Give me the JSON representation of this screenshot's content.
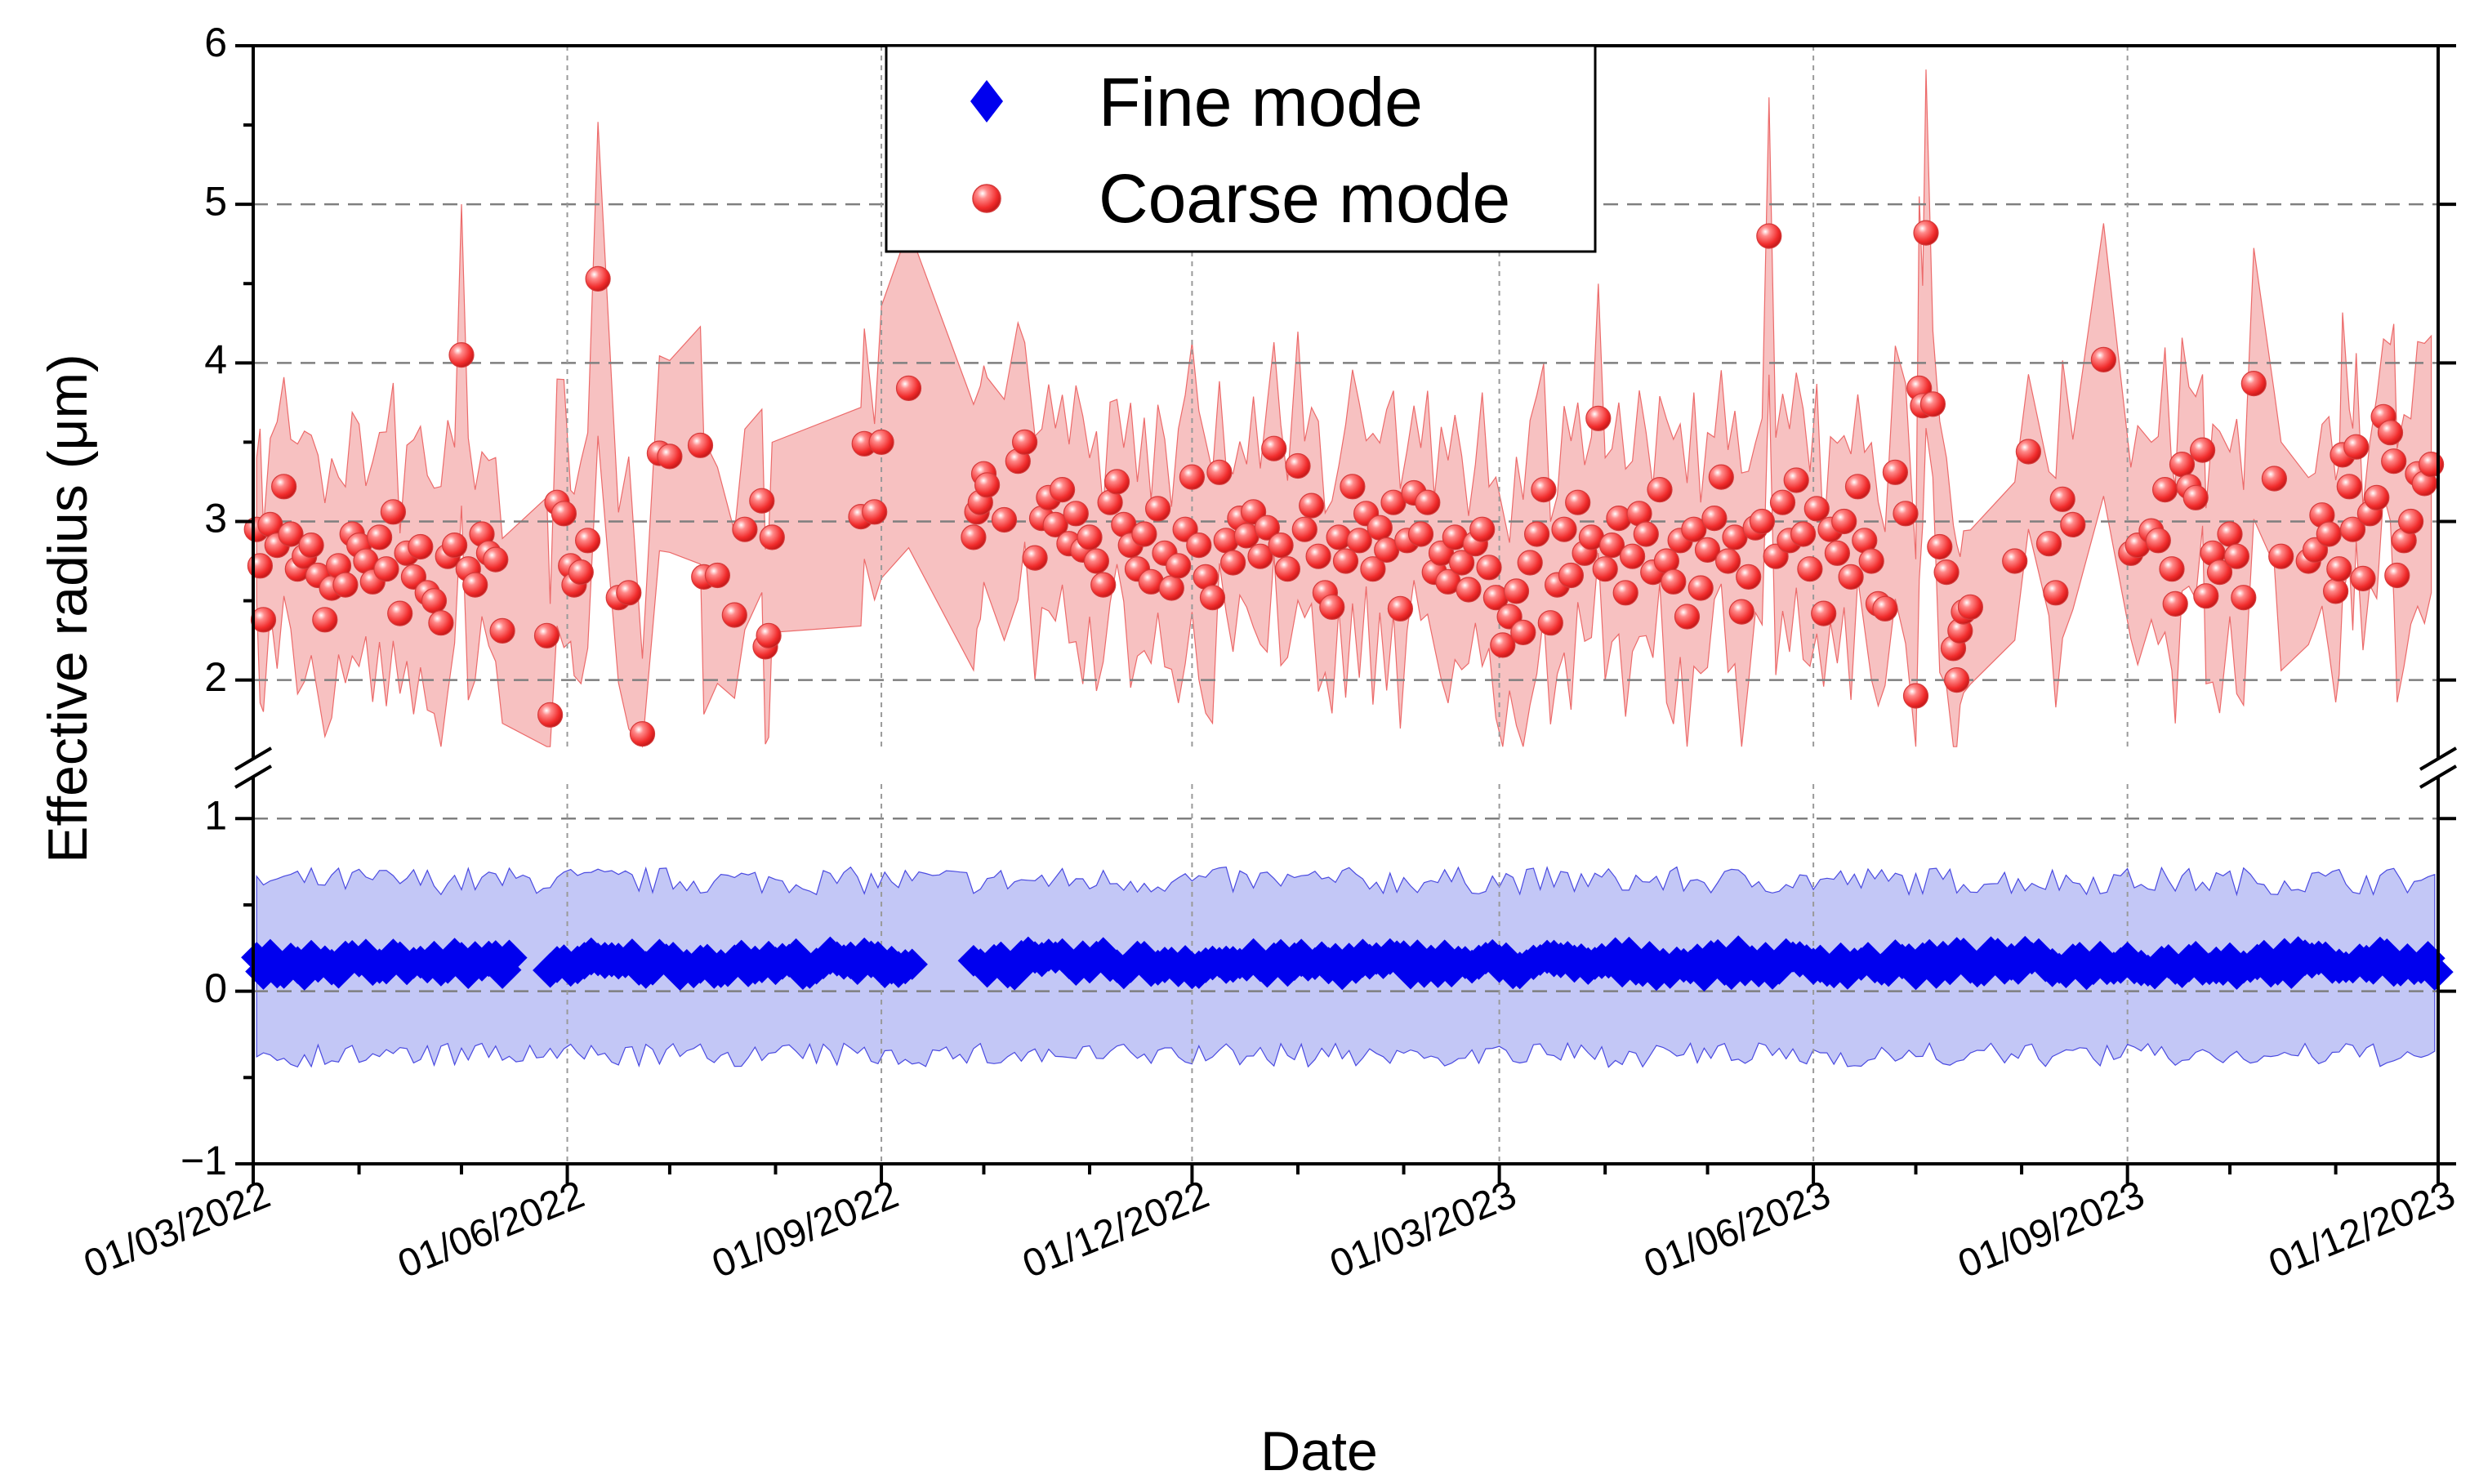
{
  "chart_data": {
    "type": "scatter",
    "title": "",
    "xlabel": "Date",
    "ylabel": "Effective radius (μm)",
    "x_range": [
      "2022-03-01",
      "2023-12-01"
    ],
    "x_tick_dates": [
      "2022-03-01",
      "2022-06-01",
      "2022-09-01",
      "2022-12-01",
      "2023-03-01",
      "2023-06-01",
      "2023-09-01",
      "2023-12-01"
    ],
    "x_tick_labels": [
      "01/03/2022",
      "01/06/2022",
      "01/09/2022",
      "01/12/2022",
      "01/03/2023",
      "01/06/2023",
      "01/09/2023",
      "01/12/2023"
    ],
    "y_axis_break": {
      "lower_segment": [
        -1,
        1.2
      ],
      "upper_segment": [
        1.55,
        6
      ]
    },
    "y_tick_values": [
      -1,
      0,
      1,
      2,
      3,
      4,
      5,
      6
    ],
    "y_tick_labels": [
      "−1",
      "0",
      "1",
      "2",
      "3",
      "4",
      "5",
      "6"
    ],
    "grid": true,
    "legend_position": "top-center",
    "legend": [
      "Fine mode",
      "Coarse mode"
    ],
    "series": [
      {
        "name": "Coarse mode",
        "marker": "sphere",
        "color": "#ff4a4a",
        "band_color": "#f4a6a6",
        "points": [
          [
            "2022-03-02",
            2.95
          ],
          [
            "2022-03-03",
            2.72
          ],
          [
            "2022-03-04",
            2.38
          ],
          [
            "2022-03-06",
            2.98
          ],
          [
            "2022-03-08",
            2.85
          ],
          [
            "2022-03-10",
            3.22
          ],
          [
            "2022-03-12",
            2.92
          ],
          [
            "2022-03-14",
            2.7
          ],
          [
            "2022-03-16",
            2.78
          ],
          [
            "2022-03-18",
            2.85
          ],
          [
            "2022-03-20",
            2.66
          ],
          [
            "2022-03-22",
            2.38
          ],
          [
            "2022-03-24",
            2.58
          ],
          [
            "2022-03-26",
            2.72
          ],
          [
            "2022-03-28",
            2.6
          ],
          [
            "2022-03-30",
            2.92
          ],
          [
            "2022-04-01",
            2.85
          ],
          [
            "2022-04-03",
            2.75
          ],
          [
            "2022-04-05",
            2.62
          ],
          [
            "2022-04-07",
            2.9
          ],
          [
            "2022-04-09",
            2.7
          ],
          [
            "2022-04-11",
            3.06
          ],
          [
            "2022-04-13",
            2.42
          ],
          [
            "2022-04-15",
            2.8
          ],
          [
            "2022-04-17",
            2.65
          ],
          [
            "2022-04-19",
            2.84
          ],
          [
            "2022-04-21",
            2.55
          ],
          [
            "2022-04-23",
            2.5
          ],
          [
            "2022-04-25",
            2.36
          ],
          [
            "2022-04-27",
            2.78
          ],
          [
            "2022-04-29",
            2.85
          ],
          [
            "2022-05-01",
            4.05
          ],
          [
            "2022-05-03",
            2.7
          ],
          [
            "2022-05-05",
            2.6
          ],
          [
            "2022-05-07",
            2.92
          ],
          [
            "2022-05-09",
            2.8
          ],
          [
            "2022-05-11",
            2.76
          ],
          [
            "2022-05-13",
            2.31
          ],
          [
            "2022-05-26",
            2.28
          ],
          [
            "2022-05-27",
            1.78
          ],
          [
            "2022-05-29",
            3.12
          ],
          [
            "2022-05-31",
            3.05
          ],
          [
            "2022-06-02",
            2.72
          ],
          [
            "2022-06-03",
            2.6
          ],
          [
            "2022-06-05",
            2.68
          ],
          [
            "2022-06-07",
            2.88
          ],
          [
            "2022-06-10",
            4.53
          ],
          [
            "2022-06-16",
            2.52
          ],
          [
            "2022-06-19",
            2.55
          ],
          [
            "2022-06-23",
            1.66
          ],
          [
            "2022-06-28",
            3.43
          ],
          [
            "2022-07-01",
            3.41
          ],
          [
            "2022-07-10",
            3.48
          ],
          [
            "2022-07-11",
            2.65
          ],
          [
            "2022-07-15",
            2.66
          ],
          [
            "2022-07-20",
            2.41
          ],
          [
            "2022-07-23",
            2.95
          ],
          [
            "2022-07-28",
            3.13
          ],
          [
            "2022-07-29",
            2.21
          ],
          [
            "2022-07-30",
            2.28
          ],
          [
            "2022-07-31",
            2.9
          ],
          [
            "2022-08-26",
            3.03
          ],
          [
            "2022-08-27",
            3.49
          ],
          [
            "2022-08-30",
            3.06
          ],
          [
            "2022-09-01",
            3.5
          ],
          [
            "2022-09-09",
            3.84
          ],
          [
            "2022-09-28",
            2.9
          ],
          [
            "2022-09-29",
            3.06
          ],
          [
            "2022-09-30",
            3.12
          ],
          [
            "2022-10-01",
            3.3
          ],
          [
            "2022-10-02",
            3.23
          ],
          [
            "2022-10-07",
            3.01
          ],
          [
            "2022-10-11",
            3.38
          ],
          [
            "2022-10-13",
            3.5
          ],
          [
            "2022-10-16",
            2.77
          ],
          [
            "2022-10-18",
            3.02
          ],
          [
            "2022-10-20",
            3.15
          ],
          [
            "2022-10-22",
            2.98
          ],
          [
            "2022-10-24",
            3.2
          ],
          [
            "2022-10-26",
            2.86
          ],
          [
            "2022-10-28",
            3.05
          ],
          [
            "2022-10-30",
            2.82
          ],
          [
            "2022-11-01",
            2.9
          ],
          [
            "2022-11-03",
            2.75
          ],
          [
            "2022-11-05",
            2.6
          ],
          [
            "2022-11-07",
            3.12
          ],
          [
            "2022-11-09",
            3.25
          ],
          [
            "2022-11-11",
            2.98
          ],
          [
            "2022-11-13",
            2.85
          ],
          [
            "2022-11-15",
            2.7
          ],
          [
            "2022-11-17",
            2.92
          ],
          [
            "2022-11-19",
            2.62
          ],
          [
            "2022-11-21",
            3.08
          ],
          [
            "2022-11-23",
            2.8
          ],
          [
            "2022-11-25",
            2.58
          ],
          [
            "2022-11-27",
            2.72
          ],
          [
            "2022-11-29",
            2.95
          ],
          [
            "2022-12-01",
            3.28
          ],
          [
            "2022-12-03",
            2.85
          ],
          [
            "2022-12-05",
            2.65
          ],
          [
            "2022-12-07",
            2.52
          ],
          [
            "2022-12-09",
            3.31
          ],
          [
            "2022-12-11",
            2.88
          ],
          [
            "2022-12-13",
            2.74
          ],
          [
            "2022-12-15",
            3.02
          ],
          [
            "2022-12-17",
            2.91
          ],
          [
            "2022-12-19",
            3.06
          ],
          [
            "2022-12-21",
            2.78
          ],
          [
            "2022-12-23",
            2.96
          ],
          [
            "2022-12-25",
            3.46
          ],
          [
            "2022-12-27",
            2.85
          ],
          [
            "2022-12-29",
            2.7
          ],
          [
            "2023-01-01",
            3.35
          ],
          [
            "2023-01-03",
            2.95
          ],
          [
            "2023-01-05",
            3.1
          ],
          [
            "2023-01-07",
            2.78
          ],
          [
            "2023-01-09",
            2.55
          ],
          [
            "2023-01-11",
            2.46
          ],
          [
            "2023-01-13",
            2.9
          ],
          [
            "2023-01-15",
            2.75
          ],
          [
            "2023-01-17",
            3.22
          ],
          [
            "2023-01-19",
            2.88
          ],
          [
            "2023-01-21",
            3.05
          ],
          [
            "2023-01-23",
            2.7
          ],
          [
            "2023-01-25",
            2.96
          ],
          [
            "2023-01-27",
            2.82
          ],
          [
            "2023-01-29",
            3.12
          ],
          [
            "2023-01-31",
            2.45
          ],
          [
            "2023-02-02",
            2.88
          ],
          [
            "2023-02-04",
            3.18
          ],
          [
            "2023-02-06",
            2.92
          ],
          [
            "2023-02-08",
            3.12
          ],
          [
            "2023-02-10",
            2.68
          ],
          [
            "2023-02-12",
            2.8
          ],
          [
            "2023-02-14",
            2.62
          ],
          [
            "2023-02-16",
            2.9
          ],
          [
            "2023-02-18",
            2.74
          ],
          [
            "2023-02-20",
            2.57
          ],
          [
            "2023-02-22",
            2.86
          ],
          [
            "2023-02-24",
            2.95
          ],
          [
            "2023-02-26",
            2.71
          ],
          [
            "2023-02-28",
            2.52
          ],
          [
            "2023-03-02",
            2.22
          ],
          [
            "2023-03-04",
            2.4
          ],
          [
            "2023-03-06",
            2.56
          ],
          [
            "2023-03-08",
            2.3
          ],
          [
            "2023-03-10",
            2.74
          ],
          [
            "2023-03-12",
            2.92
          ],
          [
            "2023-03-14",
            3.2
          ],
          [
            "2023-03-16",
            2.36
          ],
          [
            "2023-03-18",
            2.6
          ],
          [
            "2023-03-20",
            2.95
          ],
          [
            "2023-03-22",
            2.66
          ],
          [
            "2023-03-24",
            3.12
          ],
          [
            "2023-03-26",
            2.8
          ],
          [
            "2023-03-28",
            2.9
          ],
          [
            "2023-03-30",
            3.65
          ],
          [
            "2023-04-01",
            2.7
          ],
          [
            "2023-04-03",
            2.85
          ],
          [
            "2023-04-05",
            3.02
          ],
          [
            "2023-04-07",
            2.55
          ],
          [
            "2023-04-09",
            2.78
          ],
          [
            "2023-04-11",
            3.05
          ],
          [
            "2023-04-13",
            2.92
          ],
          [
            "2023-04-15",
            2.68
          ],
          [
            "2023-04-17",
            3.2
          ],
          [
            "2023-04-19",
            2.75
          ],
          [
            "2023-04-21",
            2.62
          ],
          [
            "2023-04-23",
            2.88
          ],
          [
            "2023-04-25",
            2.4
          ],
          [
            "2023-04-27",
            2.95
          ],
          [
            "2023-04-29",
            2.58
          ],
          [
            "2023-05-01",
            2.82
          ],
          [
            "2023-05-03",
            3.02
          ],
          [
            "2023-05-05",
            3.28
          ],
          [
            "2023-05-07",
            2.75
          ],
          [
            "2023-05-09",
            2.9
          ],
          [
            "2023-05-11",
            2.43
          ],
          [
            "2023-05-13",
            2.65
          ],
          [
            "2023-05-15",
            2.96
          ],
          [
            "2023-05-17",
            3.0
          ],
          [
            "2023-05-19",
            4.8
          ],
          [
            "2023-05-21",
            2.78
          ],
          [
            "2023-05-23",
            3.12
          ],
          [
            "2023-05-25",
            2.88
          ],
          [
            "2023-05-27",
            3.26
          ],
          [
            "2023-05-29",
            2.92
          ],
          [
            "2023-05-31",
            2.7
          ],
          [
            "2023-06-02",
            3.08
          ],
          [
            "2023-06-04",
            2.42
          ],
          [
            "2023-06-06",
            2.95
          ],
          [
            "2023-06-08",
            2.8
          ],
          [
            "2023-06-10",
            3.0
          ],
          [
            "2023-06-12",
            2.65
          ],
          [
            "2023-06-14",
            3.22
          ],
          [
            "2023-06-16",
            2.88
          ],
          [
            "2023-06-18",
            2.75
          ],
          [
            "2023-06-20",
            2.48
          ],
          [
            "2023-06-22",
            2.45
          ],
          [
            "2023-06-25",
            3.31
          ],
          [
            "2023-06-28",
            3.05
          ],
          [
            "2023-07-01",
            1.9
          ],
          [
            "2023-07-02",
            3.84
          ],
          [
            "2023-07-03",
            3.73
          ],
          [
            "2023-07-04",
            4.82
          ],
          [
            "2023-07-06",
            3.74
          ],
          [
            "2023-07-08",
            2.84
          ],
          [
            "2023-07-10",
            2.68
          ],
          [
            "2023-07-12",
            2.2
          ],
          [
            "2023-07-13",
            2.0
          ],
          [
            "2023-07-14",
            2.31
          ],
          [
            "2023-07-15",
            2.43
          ],
          [
            "2023-07-17",
            2.46
          ],
          [
            "2023-07-30",
            2.75
          ],
          [
            "2023-08-03",
            3.44
          ],
          [
            "2023-08-09",
            2.86
          ],
          [
            "2023-08-11",
            2.55
          ],
          [
            "2023-08-13",
            3.14
          ],
          [
            "2023-08-16",
            2.98
          ],
          [
            "2023-08-25",
            4.02
          ],
          [
            "2023-09-02",
            2.8
          ],
          [
            "2023-09-04",
            2.85
          ],
          [
            "2023-09-08",
            2.94
          ],
          [
            "2023-09-10",
            2.88
          ],
          [
            "2023-09-12",
            3.2
          ],
          [
            "2023-09-14",
            2.7
          ],
          [
            "2023-09-15",
            2.48
          ],
          [
            "2023-09-17",
            3.36
          ],
          [
            "2023-09-19",
            3.22
          ],
          [
            "2023-09-21",
            3.15
          ],
          [
            "2023-09-23",
            3.45
          ],
          [
            "2023-09-24",
            2.53
          ],
          [
            "2023-09-26",
            2.8
          ],
          [
            "2023-09-28",
            2.68
          ],
          [
            "2023-10-01",
            2.92
          ],
          [
            "2023-10-03",
            2.78
          ],
          [
            "2023-10-05",
            2.52
          ],
          [
            "2023-10-08",
            3.87
          ],
          [
            "2023-10-14",
            3.27
          ],
          [
            "2023-10-16",
            2.78
          ],
          [
            "2023-10-24",
            2.75
          ],
          [
            "2023-10-26",
            2.82
          ],
          [
            "2023-10-28",
            3.04
          ],
          [
            "2023-10-30",
            2.92
          ],
          [
            "2023-11-01",
            2.56
          ],
          [
            "2023-11-02",
            2.7
          ],
          [
            "2023-11-03",
            3.42
          ],
          [
            "2023-11-05",
            3.22
          ],
          [
            "2023-11-06",
            2.95
          ],
          [
            "2023-11-07",
            3.47
          ],
          [
            "2023-11-09",
            2.64
          ],
          [
            "2023-11-11",
            3.05
          ],
          [
            "2023-11-13",
            3.15
          ],
          [
            "2023-11-15",
            3.66
          ],
          [
            "2023-11-17",
            3.56
          ],
          [
            "2023-11-18",
            3.38
          ],
          [
            "2023-11-19",
            2.66
          ],
          [
            "2023-11-21",
            2.88
          ],
          [
            "2023-11-23",
            3.0
          ],
          [
            "2023-11-25",
            3.3
          ],
          [
            "2023-11-27",
            3.24
          ],
          [
            "2023-11-29",
            3.36
          ]
        ]
      },
      {
        "name": "Fine mode",
        "marker": "diamond",
        "color": "#0000ee",
        "band_color": "#b9bdf5",
        "typical_value": 0.16,
        "band_range": [
          -0.4,
          0.65
        ],
        "gaps": [
          [
            "2022-05-16",
            "2022-05-25"
          ],
          [
            "2022-09-12",
            "2022-09-26"
          ]
        ]
      }
    ]
  }
}
